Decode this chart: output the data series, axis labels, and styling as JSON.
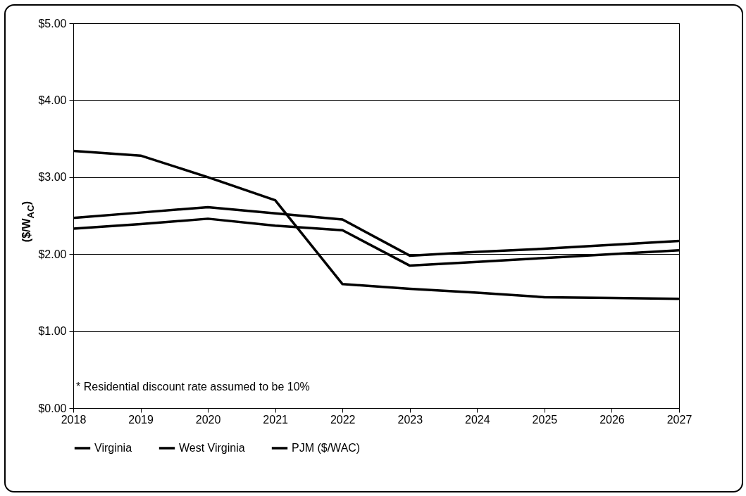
{
  "chart_data": {
    "type": "line",
    "ylabel": "($/W$_{AC}$)",
    "x": [
      2018,
      2019,
      2020,
      2021,
      2022,
      2023,
      2024,
      2025,
      2026,
      2027
    ],
    "series": [
      {
        "name": "Virginia",
        "color": "#000000",
        "values": [
          2.47,
          2.54,
          2.61,
          2.53,
          2.45,
          1.98,
          2.03,
          2.07,
          2.12,
          2.17
        ]
      },
      {
        "name": "West Virginia",
        "color": "#000000",
        "values": [
          2.33,
          2.39,
          2.46,
          2.37,
          2.31,
          1.85,
          1.9,
          1.95,
          2.0,
          2.05
        ]
      },
      {
        "name": "PJM ($/WAC)",
        "color": "#000000",
        "values": [
          3.34,
          3.28,
          3.0,
          2.7,
          1.61,
          1.55,
          1.5,
          1.44,
          1.43,
          1.42
        ]
      }
    ],
    "xlim": [
      2018,
      2027
    ],
    "xticks": [
      2018,
      2019,
      2020,
      2021,
      2022,
      2023,
      2024,
      2025,
      2026,
      2027
    ],
    "ylim": [
      0,
      5
    ],
    "yticks": [
      {
        "value": 0,
        "label": "$0.00"
      },
      {
        "value": 1,
        "label": "$1.00"
      },
      {
        "value": 2,
        "label": "$2.00"
      },
      {
        "value": 3,
        "label": "$3.00"
      },
      {
        "value": 4,
        "label": "$4.00"
      },
      {
        "value": 5,
        "label": "$5.00"
      }
    ],
    "grid": "y",
    "legend": "bottom",
    "marker": "none",
    "line_style": "solid",
    "annotations": [
      "* Residential discount rate assumed to be 10%"
    ]
  }
}
